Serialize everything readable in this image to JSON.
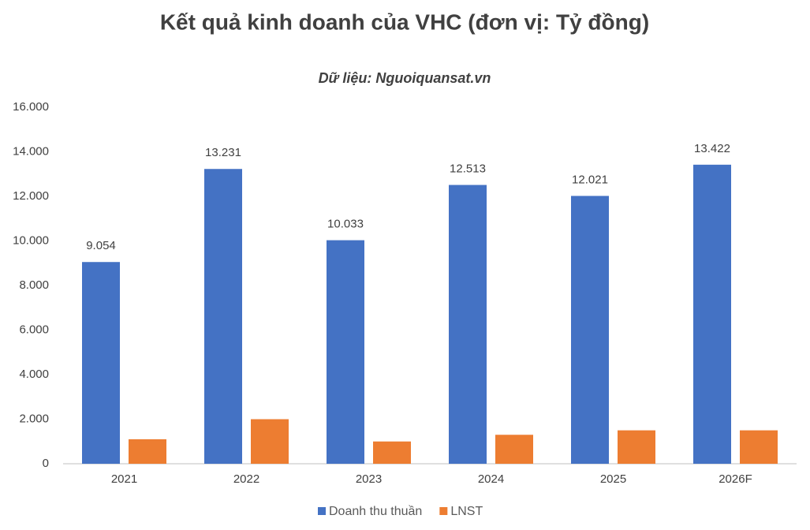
{
  "chart_data": {
    "type": "bar",
    "title": "Kết quả kinh doanh của VHC (đơn vị: Tỷ đồng)",
    "subtitle": "Dữ liệu: Nguoiquansat.vn",
    "categories": [
      "2021",
      "2022",
      "2023",
      "2024",
      "2025",
      "2026F"
    ],
    "series": [
      {
        "name": "Doanh thu thuần",
        "color": "#4472c4",
        "values": [
          9054,
          13231,
          10033,
          12513,
          12021,
          13422
        ],
        "value_labels": [
          "9.054",
          "13.231",
          "10.033",
          "12.513",
          "12.021",
          "13.422"
        ]
      },
      {
        "name": "LNST",
        "color": "#ed7d31",
        "values": [
          1100,
          2000,
          1000,
          1300,
          1500,
          1500
        ]
      }
    ],
    "ylim": [
      0,
      16000
    ],
    "yticks": [
      0,
      {
        "value": 2000,
        "label": "2.000"
      },
      {
        "value": 4000,
        "label": "4.000"
      },
      {
        "value": 6000,
        "label": "6.000"
      },
      {
        "value": 8000,
        "label": "8.000"
      },
      {
        "value": 10000,
        "label": "10.000"
      },
      {
        "value": 12000,
        "label": "12.000"
      },
      {
        "value": 14000,
        "label": "14.000"
      },
      {
        "value": 16000,
        "label": "16.000"
      }
    ],
    "grid": false,
    "legend": "bottom"
  }
}
